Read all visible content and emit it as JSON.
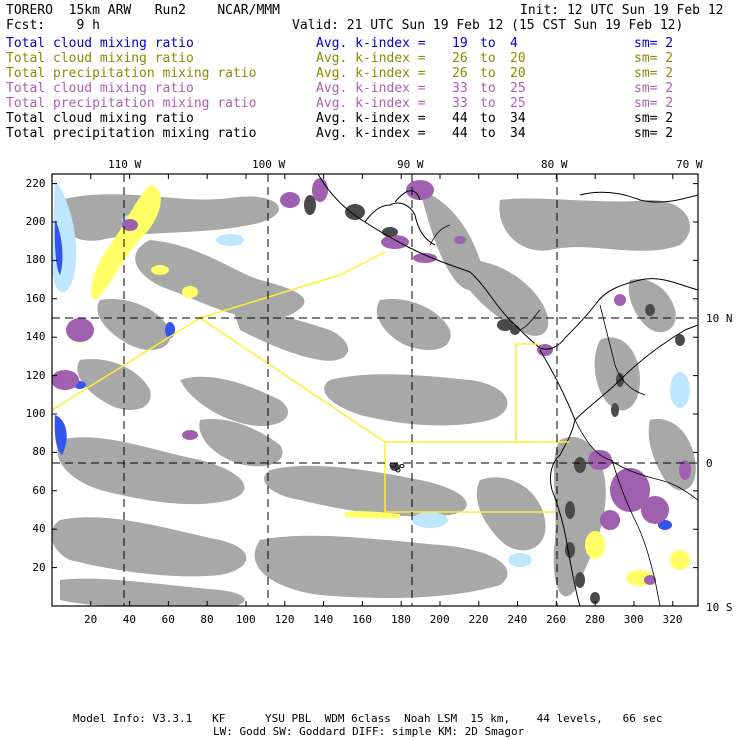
{
  "header": {
    "left_top": "TORERO  15km ARW   Run2    NCAR/MMM",
    "right_top": "Init: 12 UTC Sun 19 Feb 12",
    "left_fcst": "Fcst:    9 h",
    "right_valid": "Valid: 21 UTC Sun 19 Feb 12 (15 CST Sun 19 Feb 12)"
  },
  "legend": [
    {
      "field": "Total cloud mixing ratio",
      "avg": "Avg. k-index =",
      "k1": "19",
      "to": "to",
      "k2": "4",
      "sm": "sm= 2",
      "color": "#0000cc"
    },
    {
      "field": "Total cloud mixing ratio",
      "avg": "Avg. k-index =",
      "k1": "26",
      "to": "to",
      "k2": "20",
      "sm": "sm= 2",
      "color": "#8c8c00"
    },
    {
      "field": "Total precipitation mixing ratio",
      "avg": "Avg. k-index =",
      "k1": "26",
      "to": "to",
      "k2": "20",
      "sm": "sm= 2",
      "color": "#8c8c00"
    },
    {
      "field": "Total cloud mixing ratio",
      "avg": "Avg. k-index =",
      "k1": "33",
      "to": "to",
      "k2": "25",
      "sm": "sm= 2",
      "color": "#b060b0"
    },
    {
      "field": "Total precipitation mixing ratio",
      "avg": "Avg. k-index =",
      "k1": "33",
      "to": "to",
      "k2": "25",
      "sm": "sm= 2",
      "color": "#b060b0"
    },
    {
      "field": "Total cloud mixing ratio",
      "avg": "Avg. k-index =",
      "k1": "44",
      "to": "to",
      "k2": "34",
      "sm": "sm= 2",
      "color": "#000000"
    },
    {
      "field": "Total precipitation mixing ratio",
      "avg": "Avg. k-index =",
      "k1": "44",
      "to": "to",
      "k2": "34",
      "sm": "sm= 2",
      "color": "#000000"
    }
  ],
  "map": {
    "lon_labels": [
      "110 W",
      "100 W",
      "90 W",
      "80 W",
      "70 W"
    ],
    "lat_labels": [
      "10 N",
      "0",
      "10 S"
    ],
    "x_ticks": [
      "20",
      "40",
      "60",
      "80",
      "100",
      "120",
      "140",
      "160",
      "180",
      "200",
      "220",
      "240",
      "260",
      "280",
      "300",
      "320"
    ],
    "y_ticks": [
      "220",
      "200",
      "180",
      "160",
      "140",
      "120",
      "100",
      "80",
      "60",
      "40",
      "20"
    ],
    "colors": {
      "cloud_gray": "#a8a8a8",
      "cloud_dark": "#4a4a4a",
      "purple": "#a060b0",
      "yellow": "#ffff66",
      "light_blue": "#bfe6ff",
      "blue": "#3355ee",
      "domain_box": "#ffee33"
    }
  },
  "footer": {
    "line1": "Model Info: V3.3.1   KF      YSU PBL  WDM 6class  Noah LSM  15 km,    44 levels,   66 sec",
    "line2": "LW: Godd SW: Goddard DIFF: simple KM: 2D Smagor"
  }
}
